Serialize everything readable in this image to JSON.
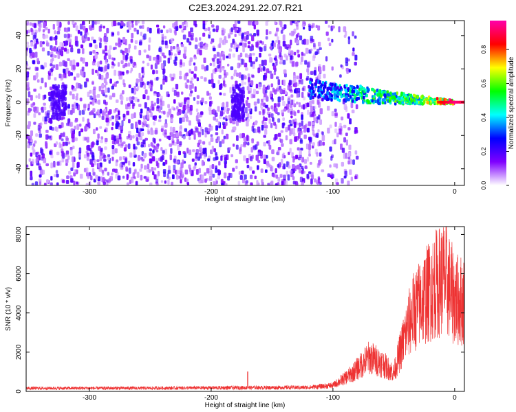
{
  "title": "C2E3.2024.291.22.07.R21",
  "chart_data": [
    {
      "type": "heatmap",
      "xlabel": "Height of straight line (km)",
      "ylabel": "Frequency (Hz)",
      "xlim": [
        -352,
        8
      ],
      "ylim": [
        -50,
        49
      ],
      "xticks": [
        -300,
        -200,
        -100,
        0
      ],
      "yticks": [
        -40,
        -20,
        0,
        20,
        40
      ],
      "colorbar": {
        "label": "Normalized spectral amplitude",
        "range": [
          0,
          0.97
        ],
        "ticks": [
          0.0,
          0.2,
          0.4,
          0.6,
          0.8
        ],
        "tick_labels": [
          "0.0",
          "0.2",
          "0.4",
          "0.6",
          "0.8"
        ],
        "colormap": [
          "#ffffff",
          "#7f00ff",
          "#0000ff",
          "#00ffff",
          "#00ff00",
          "#ffff00",
          "#ff0000",
          "#ff00aa"
        ]
      },
      "features": {
        "noise_region_x": [
          -352,
          -95
        ],
        "noise_density_amplitude": 0.2,
        "signal_track": [
          {
            "x": -120,
            "freq": 8,
            "width": 6,
            "amplitude": 0.35
          },
          {
            "x": -100,
            "freq": 6,
            "width": 5,
            "amplitude": 0.4
          },
          {
            "x": -80,
            "freq": 5,
            "width": 5,
            "amplitude": 0.5
          },
          {
            "x": -60,
            "freq": 3,
            "width": 4,
            "amplitude": 0.55
          },
          {
            "x": -40,
            "freq": 2,
            "width": 3,
            "amplitude": 0.6
          },
          {
            "x": -20,
            "freq": 1,
            "width": 2,
            "amplitude": 0.7
          },
          {
            "x": 0,
            "freq": 0,
            "width": 1,
            "amplitude": 0.97
          }
        ]
      }
    },
    {
      "type": "line",
      "xlabel": "Height of straight line (km)",
      "ylabel": "SNR (10 * v/v)",
      "xlim": [
        -352,
        8
      ],
      "ylim": [
        0,
        8400
      ],
      "xticks": [
        -300,
        -200,
        -100,
        0
      ],
      "yticks": [
        0,
        2000,
        4000,
        6000,
        8000
      ],
      "color": "#ee3333",
      "envelope": [
        {
          "x": -352,
          "y": 220
        },
        {
          "x": -250,
          "y": 230
        },
        {
          "x": -175,
          "y": 260
        },
        {
          "x": -120,
          "y": 280
        },
        {
          "x": -100,
          "y": 420
        },
        {
          "x": -85,
          "y": 1200
        },
        {
          "x": -70,
          "y": 2400
        },
        {
          "x": -60,
          "y": 2000
        },
        {
          "x": -50,
          "y": 1300
        },
        {
          "x": -42,
          "y": 3600
        },
        {
          "x": -35,
          "y": 5400
        },
        {
          "x": -25,
          "y": 6600
        },
        {
          "x": -15,
          "y": 7600
        },
        {
          "x": -8,
          "y": 8000
        },
        {
          "x": 0,
          "y": 6500
        },
        {
          "x": 8,
          "y": 6300
        }
      ],
      "spike": {
        "x": -170,
        "y": 1000
      }
    }
  ]
}
